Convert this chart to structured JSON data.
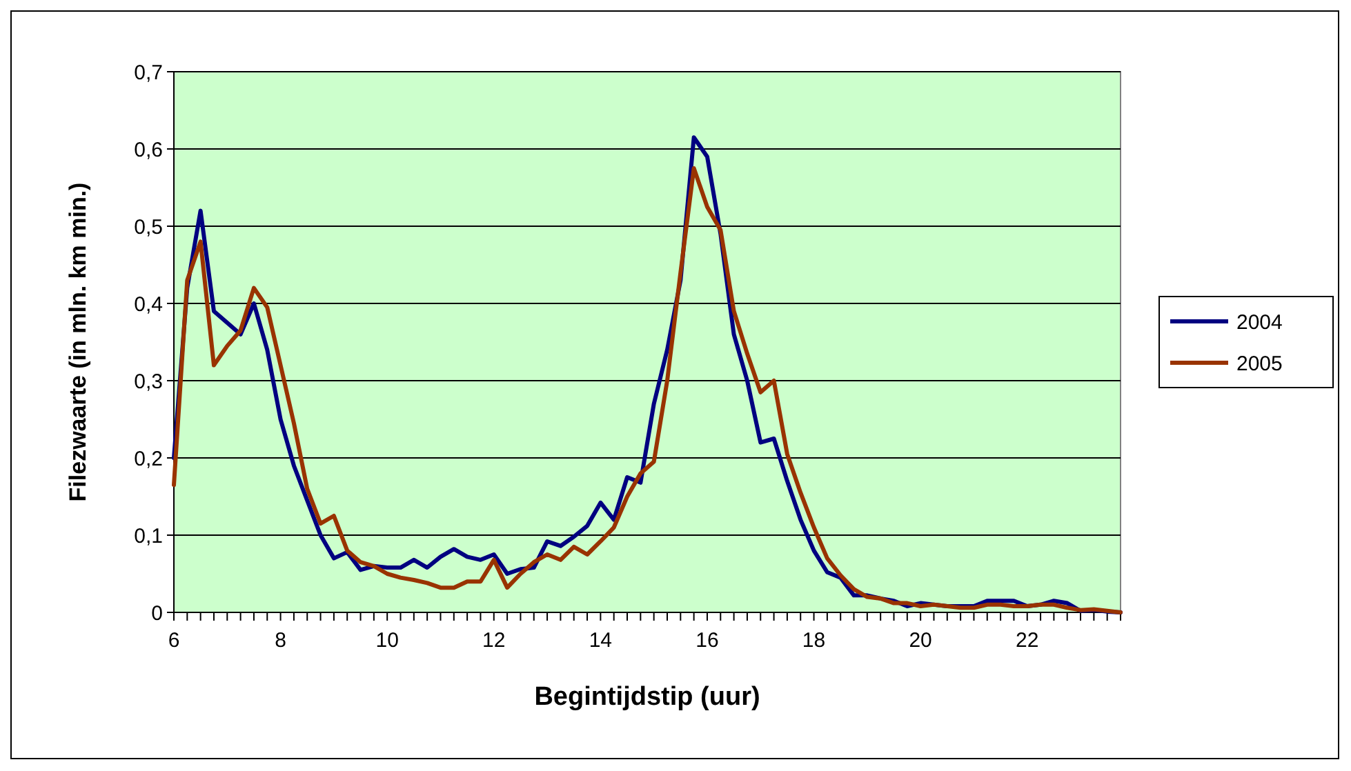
{
  "chart_data": {
    "type": "line",
    "xlabel": "Begintijdstip (uur)",
    "ylabel": "Filezwaarte (in mln. km min.)",
    "x": [
      6,
      6.25,
      6.5,
      6.75,
      7,
      7.25,
      7.5,
      7.75,
      8,
      8.25,
      8.5,
      8.75,
      9,
      9.25,
      9.5,
      9.75,
      10,
      10.25,
      10.5,
      10.75,
      11,
      11.25,
      11.5,
      11.75,
      12,
      12.25,
      12.5,
      12.75,
      13,
      13.25,
      13.5,
      13.75,
      14,
      14.25,
      14.5,
      14.75,
      15,
      15.25,
      15.5,
      15.75,
      16,
      16.25,
      16.5,
      16.75,
      17,
      17.25,
      17.5,
      17.75,
      18,
      18.25,
      18.5,
      18.75,
      19,
      19.25,
      19.5,
      19.75,
      20,
      20.25,
      20.5,
      20.75,
      21,
      21.25,
      21.5,
      21.75,
      22,
      22.25,
      22.5,
      22.75,
      23,
      23.25,
      23.5,
      23.75
    ],
    "series": [
      {
        "name": "2004",
        "color": "#000080",
        "values": [
          0.2,
          0.42,
          0.52,
          0.39,
          0.375,
          0.36,
          0.4,
          0.34,
          0.25,
          0.19,
          0.145,
          0.1,
          0.07,
          0.078,
          0.055,
          0.06,
          0.058,
          0.058,
          0.068,
          0.058,
          0.072,
          0.082,
          0.072,
          0.068,
          0.075,
          0.05,
          0.056,
          0.058,
          0.092,
          0.086,
          0.098,
          0.112,
          0.142,
          0.12,
          0.175,
          0.168,
          0.27,
          0.34,
          0.43,
          0.615,
          0.59,
          0.49,
          0.36,
          0.3,
          0.22,
          0.225,
          0.17,
          0.12,
          0.08,
          0.052,
          0.045,
          0.022,
          0.022,
          0.018,
          0.015,
          0.008,
          0.012,
          0.01,
          0.008,
          0.008,
          0.008,
          0.015,
          0.015,
          0.015,
          0.008,
          0.01,
          0.015,
          0.012,
          0.002,
          0.003,
          0.001,
          0
        ]
      },
      {
        "name": "2005",
        "color": "#993300",
        "values": [
          0.165,
          0.43,
          0.48,
          0.32,
          0.345,
          0.365,
          0.42,
          0.395,
          0.32,
          0.245,
          0.16,
          0.115,
          0.125,
          0.08,
          0.065,
          0.06,
          0.05,
          0.045,
          0.042,
          0.038,
          0.032,
          0.032,
          0.04,
          0.04,
          0.068,
          0.032,
          0.05,
          0.065,
          0.075,
          0.068,
          0.085,
          0.075,
          0.092,
          0.11,
          0.15,
          0.18,
          0.195,
          0.3,
          0.44,
          0.575,
          0.525,
          0.495,
          0.39,
          0.335,
          0.285,
          0.3,
          0.205,
          0.155,
          0.11,
          0.07,
          0.048,
          0.03,
          0.02,
          0.018,
          0.012,
          0.012,
          0.008,
          0.01,
          0.008,
          0.006,
          0.006,
          0.01,
          0.01,
          0.008,
          0.008,
          0.01,
          0.01,
          0.006,
          0.003,
          0.004,
          0.002,
          0
        ]
      }
    ],
    "xlim": [
      6,
      23.75
    ],
    "xticks": [
      6,
      {
        "value": 6.25,
        "label": null
      },
      {
        "value": 6.5,
        "label": null
      },
      {
        "value": 6.75,
        "label": null
      },
      {
        "value": 7,
        "label": null
      },
      {
        "value": 7.25,
        "label": null
      },
      {
        "value": 7.5,
        "label": null
      },
      {
        "value": 7.75,
        "label": null
      },
      8,
      {
        "value": 8.25,
        "label": null
      },
      {
        "value": 8.5,
        "label": null
      },
      {
        "value": 8.75,
        "label": null
      },
      {
        "value": 9,
        "label": null
      },
      {
        "value": 9.25,
        "label": null
      },
      {
        "value": 9.5,
        "label": null
      },
      {
        "value": 9.75,
        "label": null
      },
      10,
      {
        "value": 10.25,
        "label": null
      },
      {
        "value": 10.5,
        "label": null
      },
      {
        "value": 10.75,
        "label": null
      },
      {
        "value": 11,
        "label": null
      },
      {
        "value": 11.25,
        "label": null
      },
      {
        "value": 11.5,
        "label": null
      },
      {
        "value": 11.75,
        "label": null
      },
      12,
      {
        "value": 12.25,
        "label": null
      },
      {
        "value": 12.5,
        "label": null
      },
      {
        "value": 12.75,
        "label": null
      },
      {
        "value": 13,
        "label": null
      },
      {
        "value": 13.25,
        "label": null
      },
      {
        "value": 13.5,
        "label": null
      },
      {
        "value": 13.75,
        "label": null
      },
      14,
      {
        "value": 14.25,
        "label": null
      },
      {
        "value": 14.5,
        "label": null
      },
      {
        "value": 14.75,
        "label": null
      },
      {
        "value": 15,
        "label": null
      },
      {
        "value": 15.25,
        "label": null
      },
      {
        "value": 15.5,
        "label": null
      },
      {
        "value": 15.75,
        "label": null
      },
      16,
      {
        "value": 16.25,
        "label": null
      },
      {
        "value": 16.5,
        "label": null
      },
      {
        "value": 16.75,
        "label": null
      },
      {
        "value": 17,
        "label": null
      },
      {
        "value": 17.25,
        "label": null
      },
      {
        "value": 17.5,
        "label": null
      },
      {
        "value": 17.75,
        "label": null
      },
      18,
      {
        "value": 18.25,
        "label": null
      },
      {
        "value": 18.5,
        "label": null
      },
      {
        "value": 18.75,
        "label": null
      },
      {
        "value": 19,
        "label": null
      },
      {
        "value": 19.25,
        "label": null
      },
      {
        "value": 19.5,
        "label": null
      },
      {
        "value": 19.75,
        "label": null
      },
      20,
      {
        "value": 20.25,
        "label": null
      },
      {
        "value": 20.5,
        "label": null
      },
      {
        "value": 20.75,
        "label": null
      },
      {
        "value": 21,
        "label": null
      },
      {
        "value": 21.25,
        "label": null
      },
      {
        "value": 21.5,
        "label": null
      },
      {
        "value": 21.75,
        "label": null
      },
      22,
      {
        "value": 22.25,
        "label": null
      },
      {
        "value": 22.5,
        "label": null
      },
      {
        "value": 22.75,
        "label": null
      },
      {
        "value": 23,
        "label": null
      },
      {
        "value": 23.25,
        "label": null
      },
      {
        "value": 23.5,
        "label": null
      },
      {
        "value": 23.75,
        "label": null
      }
    ],
    "ylim": [
      0,
      0.7
    ],
    "yticks": [
      0,
      {
        "value": 0.1,
        "label": "0,1"
      },
      {
        "value": 0.2,
        "label": "0,2"
      },
      {
        "value": 0.3,
        "label": "0,3"
      },
      {
        "value": 0.4,
        "label": "0,4"
      },
      {
        "value": 0.5,
        "label": "0,5"
      },
      {
        "value": 0.6,
        "label": "0,6"
      },
      {
        "value": 0.7,
        "label": "0,7"
      }
    ],
    "grid": "y",
    "legend": "right",
    "marker": "none",
    "line_style": "solid"
  }
}
